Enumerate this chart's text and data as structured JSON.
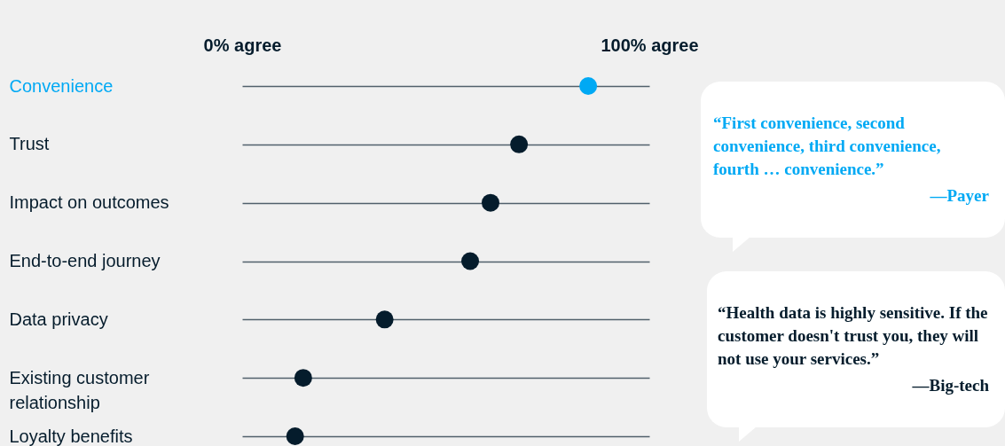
{
  "chart_data": {
    "type": "scatter",
    "orientation": "horizontal",
    "categories": [
      "Convenience",
      "Trust",
      "Impact on outcomes",
      "End-to-end journey",
      "Data privacy",
      "Existing customer relationship",
      "Loyalty benefits"
    ],
    "values": [
      85,
      68,
      61,
      56,
      35,
      15,
      13
    ],
    "colors": [
      "#00a9f4",
      "#051c2c",
      "#051c2c",
      "#051c2c",
      "#051c2c",
      "#051c2c",
      "#051c2c"
    ],
    "xlim": [
      0,
      100
    ],
    "xticks": [
      {
        "value": 0,
        "label": "0% agree"
      },
      {
        "value": 100,
        "label": "100% agree"
      }
    ],
    "grid": "y",
    "marker": "circle",
    "annotations": [
      "“First convenience, second convenience, third convenience, fourth … convenience.”",
      "—Payer",
      "“Health data is highly sensitive. If the customer doesn't trust you, they will not use your services.”",
      "—Big-tech"
    ]
  }
}
